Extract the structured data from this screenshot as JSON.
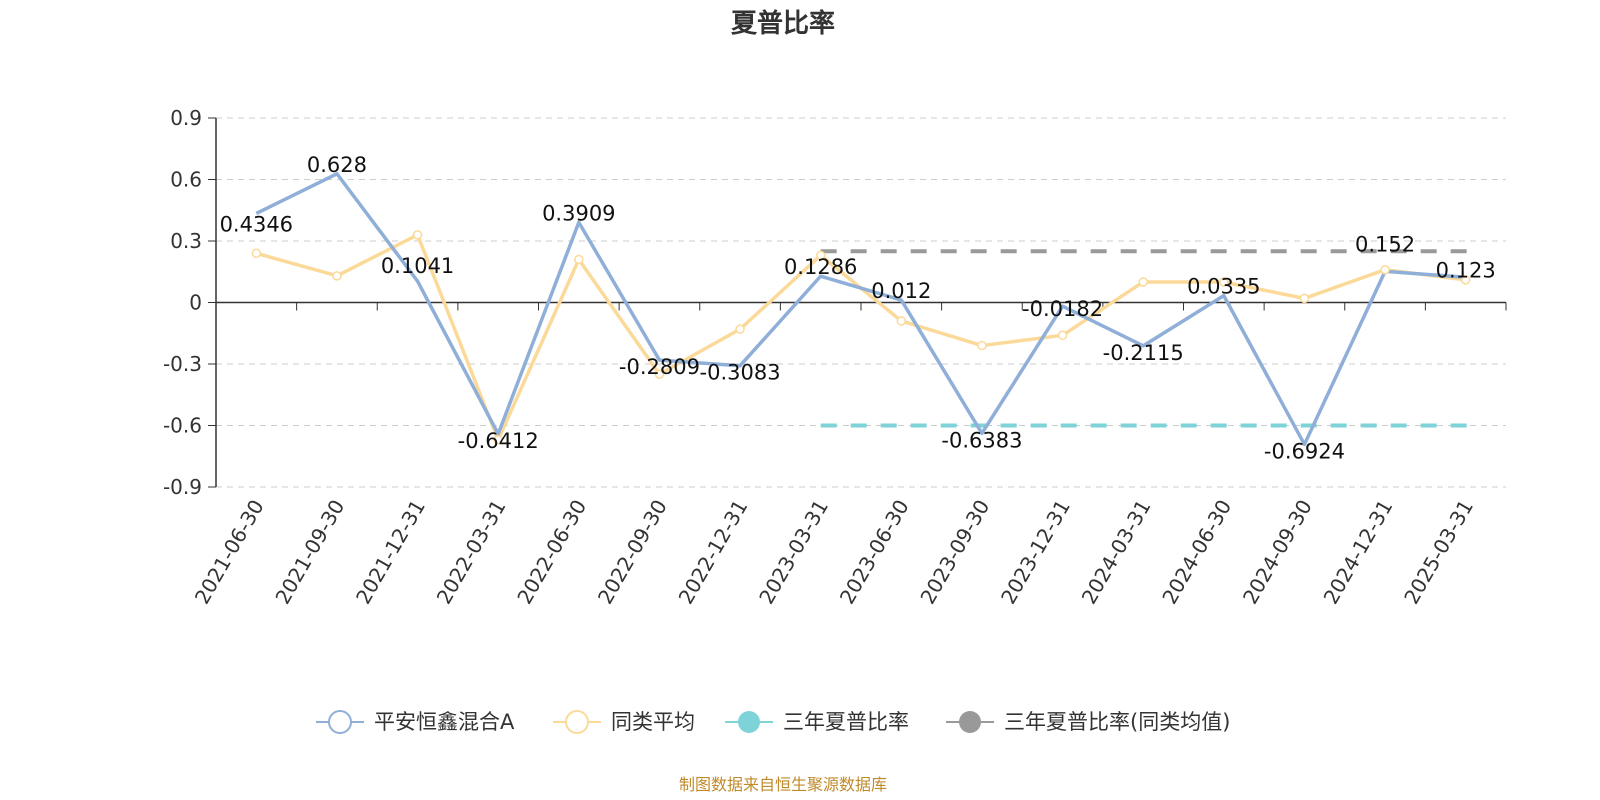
{
  "chart_data": {
    "type": "line",
    "title": "夏普比率",
    "xlabel": "",
    "ylabel": "",
    "categories": [
      "2021-06-30",
      "2021-09-30",
      "2021-12-31",
      "2022-03-31",
      "2022-06-30",
      "2022-09-30",
      "2022-12-31",
      "2023-03-31",
      "2023-06-30",
      "2023-09-30",
      "2023-12-31",
      "2024-03-31",
      "2024-06-30",
      "2024-09-30",
      "2024-12-31",
      "2025-03-31"
    ],
    "y_ticks": [
      "0.9",
      "0.6",
      "0.3",
      "0",
      "-0.3",
      "-0.6",
      "-0.9"
    ],
    "y_tick_values": [
      0.9,
      0.6,
      0.3,
      0,
      -0.3,
      -0.6,
      -0.9
    ],
    "ylim": [
      -0.9,
      0.9
    ],
    "grid": true,
    "legend_position": "bottom",
    "series": [
      {
        "name": "平安恒鑫混合A",
        "color": "#8fafd8",
        "values": [
          0.4346,
          0.628,
          0.1041,
          -0.6412,
          0.3909,
          -0.2809,
          -0.3083,
          0.1286,
          0.012,
          -0.6383,
          -0.0182,
          -0.2115,
          0.0335,
          -0.6924,
          0.152,
          0.123
        ],
        "labels": [
          "0.4346",
          "0.628",
          "0.1041",
          "-0.6412",
          "0.3909",
          "-0.2809",
          "-0.3083",
          "0.1286",
          "0.012",
          "-0.6383",
          "-0.0182",
          "-0.2115",
          "0.0335",
          "-0.6924",
          "0.152",
          "0.123"
        ]
      },
      {
        "name": "同类平均",
        "color": "#fbd999",
        "values": [
          0.24,
          0.13,
          0.33,
          -0.67,
          0.21,
          -0.35,
          -0.13,
          0.23,
          -0.09,
          -0.21,
          -0.16,
          0.1,
          0.1,
          0.02,
          0.16,
          0.11
        ]
      },
      {
        "name": "三年夏普比率",
        "color": "#7dd3d8",
        "from_category": "2023-03-31",
        "to_category": "2025-03-31",
        "value": -0.6
      },
      {
        "name": "三年夏普比率(同类均值)",
        "color": "#999999",
        "from_category": "2023-03-31",
        "to_category": "2025-03-31",
        "value": 0.25
      }
    ]
  },
  "source_note": "制图数据来自恒生聚源数据库"
}
